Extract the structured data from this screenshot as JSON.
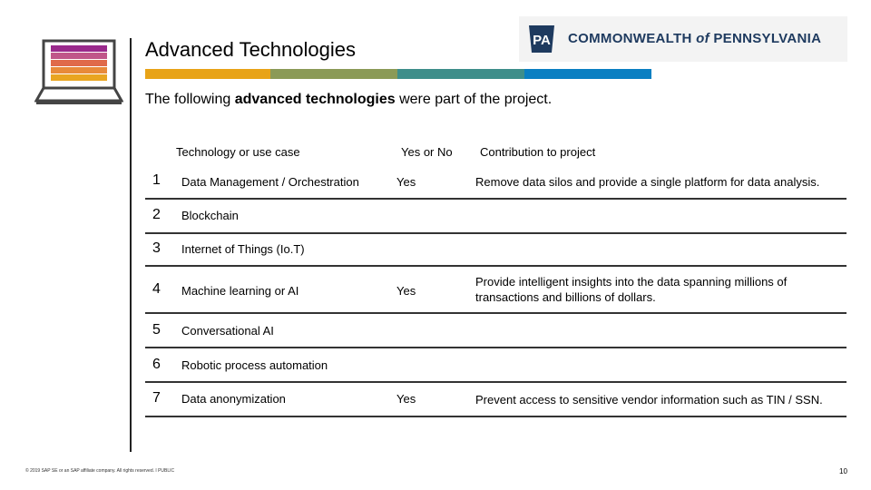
{
  "header": {
    "title": "Advanced Technologies",
    "subtitle_pre": "The following ",
    "subtitle_bold": "advanced technologies",
    "subtitle_post": " were part of the project."
  },
  "logo": {
    "badge": "PA",
    "text_pre": "COMMONWEALTH ",
    "text_of": "of",
    "text_post": " PENNSYLVANIA"
  },
  "colors": {
    "stripe": [
      "#e8a317",
      "#8b9a57",
      "#3e8e8a",
      "#0a7fc2"
    ],
    "laptop_bars": [
      "#9a2a8c",
      "#c0568a",
      "#e06a4a",
      "#e88a3a",
      "#e9a521"
    ]
  },
  "table": {
    "headers": [
      "Technology or use case",
      "Yes or No",
      "Contribution to project"
    ],
    "rows": [
      {
        "num": "1",
        "tech": "Data Management / Orchestration",
        "yes": "Yes",
        "contrib": "Remove data silos and provide a single platform for data analysis."
      },
      {
        "num": "2",
        "tech": "Blockchain",
        "yes": "",
        "contrib": ""
      },
      {
        "num": "3",
        "tech": "Internet of Things (Io.T)",
        "yes": "",
        "contrib": ""
      },
      {
        "num": "4",
        "tech": "Machine learning or AI",
        "yes": "Yes",
        "contrib": "Provide intelligent insights into the data spanning millions of transactions and billions of dollars."
      },
      {
        "num": "5",
        "tech": "Conversational AI",
        "yes": "",
        "contrib": ""
      },
      {
        "num": "6",
        "tech": "Robotic process automation",
        "yes": "",
        "contrib": ""
      },
      {
        "num": "7",
        "tech": "Data anonymization",
        "yes": "Yes",
        "contrib": "Prevent access to sensitive vendor information such as TIN / SSN."
      }
    ]
  },
  "footer": {
    "copyright": "© 2019 SAP SE or an SAP affiliate company. All rights reserved. ǀ PUBLIC",
    "page": "10"
  }
}
